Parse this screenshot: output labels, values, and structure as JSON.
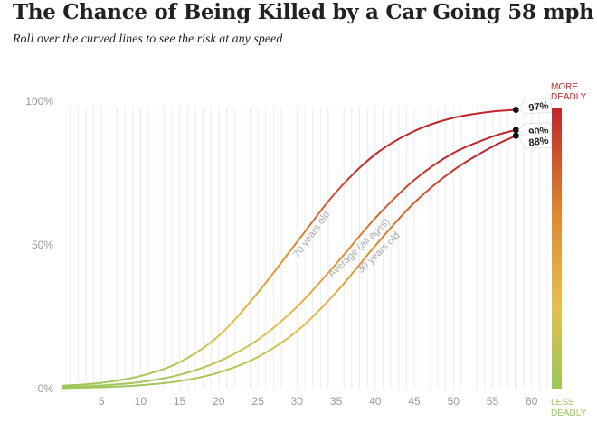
{
  "title": "The Chance of Being Killed by a Car Going 58 mph",
  "subtitle": "Roll over the curved lines to see the risk at any speed",
  "colors": {
    "low": "#9cc65a",
    "mid": "#e5c04a",
    "orange": "#dd8a30",
    "high": "#c0252a",
    "gridline": "#ececec",
    "axis_text": "#999999"
  },
  "legend": {
    "top_label_line1": "MORE",
    "top_label_line2": "DEADLY",
    "bottom_label_line1": "LESS",
    "bottom_label_line2": "DEADLY"
  },
  "chart_data": {
    "type": "line",
    "xlabel": "",
    "ylabel": "",
    "x_range": [
      0,
      62
    ],
    "ylim": [
      0,
      100
    ],
    "x_ticks": [
      5,
      10,
      15,
      20,
      25,
      30,
      35,
      40,
      45,
      50,
      55,
      60
    ],
    "y_ticks": [
      {
        "value": 0,
        "label": "0%"
      },
      {
        "value": 50,
        "label": "50%"
      },
      {
        "value": 100,
        "label": "100%"
      }
    ],
    "grid": "vertical lines every 1 mph",
    "highlight_speed": 58,
    "x": [
      0,
      5,
      10,
      15,
      20,
      25,
      30,
      35,
      40,
      45,
      50,
      55,
      58
    ],
    "series": [
      {
        "name": "70 years old",
        "label_text": "70 years old",
        "values": [
          1.0,
          2.0,
          4.4,
          9.2,
          18.4,
          33.4,
          51.0,
          68.4,
          81.5,
          89.6,
          94.2,
          96.4,
          97.0
        ],
        "end_label": "97%"
      },
      {
        "name": "Average (all ages)",
        "label_text": "Average (all ages)",
        "values": [
          0.5,
          1.1,
          2.3,
          4.8,
          9.5,
          17.0,
          28.5,
          43.4,
          59.3,
          72.6,
          82.0,
          87.7,
          90.0
        ],
        "end_label": "90%"
      },
      {
        "name": "30 years old",
        "label_text": "30 years old",
        "values": [
          0.2,
          0.5,
          1.2,
          2.6,
          5.6,
          11.0,
          20.0,
          33.5,
          49.7,
          64.7,
          76.0,
          84.2,
          88.0
        ],
        "end_label": "88%"
      }
    ]
  }
}
